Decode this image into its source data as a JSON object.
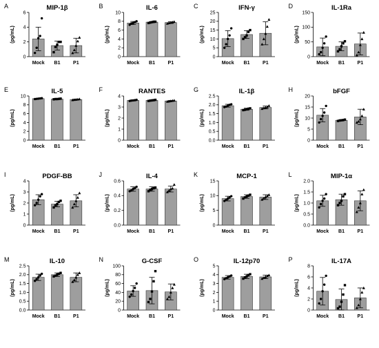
{
  "chart_data": [
    {
      "letter": "A",
      "title": "MIP-1β",
      "type": "bar",
      "ylabel": "(pg/mL)",
      "categories": [
        "Mock",
        "B1",
        "P1"
      ],
      "ylim": [
        0,
        6
      ],
      "yticks": [
        0,
        2,
        4,
        6
      ],
      "values": [
        2.4,
        1.5,
        1.5
      ],
      "errors": [
        1.6,
        0.6,
        1.0
      ],
      "points": [
        [
          0.5,
          1.2,
          2.5,
          2.8,
          5.2
        ],
        [
          0.6,
          1.3,
          1.6,
          2.0,
          2.0
        ],
        [
          0.5,
          0.9,
          1.5,
          2.1,
          2.6
        ]
      ],
      "markers": [
        "circle",
        "square",
        "triangle"
      ]
    },
    {
      "letter": "B",
      "title": "IL-6",
      "type": "bar",
      "ylabel": "(pg/mL)",
      "categories": [
        "Mock",
        "B1",
        "P1"
      ],
      "ylim": [
        0,
        10
      ],
      "yticks": [
        0,
        2,
        4,
        6,
        8,
        10
      ],
      "values": [
        7.6,
        7.8,
        7.7
      ],
      "errors": [
        0.35,
        0.15,
        0.2
      ],
      "points": [
        [
          7.2,
          7.5,
          7.6,
          7.8,
          8.0
        ],
        [
          7.6,
          7.7,
          7.8,
          7.9,
          7.9
        ],
        [
          7.5,
          7.6,
          7.7,
          7.8,
          7.9
        ]
      ],
      "markers": [
        "circle",
        "square",
        "triangle"
      ]
    },
    {
      "letter": "C",
      "title": "IFN-γ",
      "type": "bar",
      "ylabel": "(pg/mL)",
      "categories": [
        "Mock",
        "B1",
        "P1"
      ],
      "ylim": [
        0,
        25
      ],
      "yticks": [
        0,
        5,
        10,
        15,
        20,
        25
      ],
      "values": [
        10.2,
        12.5,
        13.2
      ],
      "errors": [
        4.5,
        2.2,
        6.5
      ],
      "points": [
        [
          5,
          7,
          10,
          12,
          16
        ],
        [
          10,
          11,
          12,
          14,
          15
        ],
        [
          7,
          10,
          13,
          17,
          21
        ]
      ],
      "markers": [
        "circle",
        "square",
        "triangle"
      ]
    },
    {
      "letter": "D",
      "title": "IL-1Ra",
      "type": "bar",
      "ylabel": "(pg/mL)",
      "categories": [
        "Mock",
        "B1",
        "P1"
      ],
      "ylim": [
        0,
        150
      ],
      "yticks": [
        0,
        50,
        100,
        150
      ],
      "values": [
        33,
        35,
        43
      ],
      "errors": [
        30,
        15,
        37
      ],
      "points": [
        [
          8,
          15,
          30,
          45,
          68
        ],
        [
          18,
          25,
          35,
          45,
          52
        ],
        [
          5,
          15,
          40,
          60,
          82
        ]
      ],
      "markers": [
        "circle",
        "square",
        "triangle"
      ]
    },
    {
      "letter": "E",
      "title": "IL-5",
      "type": "bar",
      "ylabel": "(pg/mL)",
      "categories": [
        "Mock",
        "B1",
        "P1"
      ],
      "ylim": [
        0,
        10
      ],
      "yticks": [
        0,
        2,
        4,
        6,
        8,
        10
      ],
      "values": [
        9.4,
        9.3,
        9.2
      ],
      "errors": [
        0.08,
        0.06,
        0.08
      ],
      "points": [
        [
          9.3,
          9.35,
          9.4,
          9.45,
          9.5
        ],
        [
          9.25,
          9.3,
          9.3,
          9.35,
          9.4
        ],
        [
          9.1,
          9.15,
          9.2,
          9.25,
          9.3
        ]
      ],
      "markers": [
        "circle",
        "square",
        "triangle"
      ]
    },
    {
      "letter": "F",
      "title": "RANTES",
      "type": "bar",
      "ylabel": "(pg/mL)",
      "categories": [
        "Mock",
        "B1",
        "P1"
      ],
      "ylim": [
        0,
        4
      ],
      "yticks": [
        0,
        1,
        2,
        3,
        4
      ],
      "values": [
        3.6,
        3.6,
        3.55
      ],
      "errors": [
        0.05,
        0.05,
        0.05
      ],
      "points": [
        [
          3.55,
          3.58,
          3.6,
          3.62,
          3.65
        ],
        [
          3.55,
          3.58,
          3.6,
          3.62,
          3.65
        ],
        [
          3.5,
          3.52,
          3.55,
          3.58,
          3.6
        ]
      ],
      "markers": [
        "circle",
        "square",
        "triangle"
      ]
    },
    {
      "letter": "G",
      "title": "IL-1β",
      "type": "bar",
      "ylabel": "(pg/mL)",
      "categories": [
        "Mock",
        "B1",
        "P1"
      ],
      "ylim": [
        0,
        2.5
      ],
      "yticks": [
        0,
        0.5,
        1.0,
        1.5,
        2.0,
        2.5
      ],
      "ytickLabels": [
        "0.0",
        "0.5",
        "1.0",
        "1.5",
        "2.0",
        "2.5"
      ],
      "values": [
        1.95,
        1.75,
        1.85
      ],
      "errors": [
        0.08,
        0.06,
        0.08
      ],
      "points": [
        [
          1.87,
          1.9,
          1.95,
          2.0,
          2.03
        ],
        [
          1.7,
          1.72,
          1.75,
          1.78,
          1.8
        ],
        [
          1.78,
          1.82,
          1.85,
          1.88,
          1.95
        ]
      ],
      "markers": [
        "circle",
        "square",
        "triangle"
      ]
    },
    {
      "letter": "H",
      "title": "bFGF",
      "type": "bar",
      "ylabel": "(pg/mL)",
      "categories": [
        "Mock",
        "B1",
        "P1"
      ],
      "ylim": [
        0,
        20
      ],
      "yticks": [
        0,
        5,
        10,
        15,
        20
      ],
      "values": [
        11.3,
        9.0,
        10.5
      ],
      "errors": [
        3.0,
        0.3,
        3.5
      ],
      "points": [
        [
          8,
          9.5,
          11,
          12.5,
          15.5
        ],
        [
          8.7,
          8.9,
          9.0,
          9.1,
          9.3
        ],
        [
          8,
          8.5,
          9.5,
          11,
          14
        ]
      ],
      "markers": [
        "circle",
        "square",
        "triangle"
      ]
    },
    {
      "letter": "I",
      "title": "PDGF-BB",
      "type": "bar",
      "ylabel": "(pg/mL)",
      "categories": [
        "Mock",
        "B1",
        "P1"
      ],
      "ylim": [
        0,
        4
      ],
      "yticks": [
        0,
        1,
        2,
        3,
        4
      ],
      "values": [
        2.3,
        1.9,
        2.2
      ],
      "errors": [
        0.45,
        0.25,
        0.55
      ],
      "points": [
        [
          1.8,
          2.0,
          2.3,
          2.6,
          2.8
        ],
        [
          1.6,
          1.8,
          1.9,
          2.1,
          2.2
        ],
        [
          1.6,
          1.9,
          2.2,
          2.5,
          2.9
        ]
      ],
      "markers": [
        "circle",
        "square",
        "triangle"
      ]
    },
    {
      "letter": "J",
      "title": "IL-4",
      "type": "bar",
      "ylabel": "(pg/mL)",
      "categories": [
        "Mock",
        "B1",
        "P1"
      ],
      "ylim": [
        0,
        0.6
      ],
      "yticks": [
        0,
        0.2,
        0.4,
        0.6
      ],
      "ytickLabels": [
        "0.0",
        "0.2",
        "0.4",
        "0.6"
      ],
      "values": [
        0.49,
        0.49,
        0.49
      ],
      "errors": [
        0.03,
        0.03,
        0.04
      ],
      "points": [
        [
          0.46,
          0.47,
          0.49,
          0.5,
          0.52
        ],
        [
          0.46,
          0.48,
          0.49,
          0.5,
          0.51
        ],
        [
          0.45,
          0.47,
          0.49,
          0.5,
          0.55
        ]
      ],
      "markers": [
        "circle",
        "square",
        "triangle"
      ]
    },
    {
      "letter": "K",
      "title": "MCP-1",
      "type": "bar",
      "ylabel": "(pg/mL)",
      "categories": [
        "Mock",
        "B1",
        "P1"
      ],
      "ylim": [
        0,
        15
      ],
      "yticks": [
        0,
        5,
        10,
        15
      ],
      "values": [
        9.0,
        9.7,
        9.5
      ],
      "errors": [
        0.8,
        0.6,
        0.8
      ],
      "points": [
        [
          8.2,
          8.6,
          9.0,
          9.4,
          9.8
        ],
        [
          9.0,
          9.4,
          9.7,
          10.0,
          10.3
        ],
        [
          8.7,
          9.1,
          9.5,
          9.9,
          10.3
        ]
      ],
      "markers": [
        "circle",
        "square",
        "triangle"
      ]
    },
    {
      "letter": "L",
      "title": "MIP-1α",
      "type": "bar",
      "ylabel": "(pg/mL)",
      "categories": [
        "Mock",
        "B1",
        "P1"
      ],
      "ylim": [
        0,
        2.0
      ],
      "yticks": [
        0,
        0.5,
        1.0,
        1.5,
        2.0
      ],
      "ytickLabels": [
        "0.0",
        "0.5",
        "1.0",
        "1.5",
        "2.0"
      ],
      "values": [
        1.1,
        1.15,
        1.1
      ],
      "errors": [
        0.25,
        0.25,
        0.45
      ],
      "points": [
        [
          0.8,
          0.95,
          1.1,
          1.2,
          1.4
        ],
        [
          0.9,
          1.0,
          1.1,
          1.3,
          1.4
        ],
        [
          0.6,
          0.8,
          1.0,
          1.4,
          1.6
        ]
      ],
      "markers": [
        "circle",
        "square",
        "triangle"
      ]
    },
    {
      "letter": "M",
      "title": "IL-10",
      "type": "bar",
      "ylabel": "(pg/mL)",
      "categories": [
        "Mock",
        "B1",
        "P1"
      ],
      "ylim": [
        0,
        2.5
      ],
      "yticks": [
        0,
        0.5,
        1.0,
        1.5,
        2.0,
        2.5
      ],
      "ytickLabels": [
        "0.0",
        "0.5",
        "1.0",
        "1.5",
        "2.0",
        "2.5"
      ],
      "values": [
        1.85,
        2.0,
        1.85
      ],
      "errors": [
        0.18,
        0.1,
        0.25
      ],
      "points": [
        [
          1.65,
          1.75,
          1.85,
          1.95,
          2.05
        ],
        [
          1.9,
          1.95,
          2.0,
          2.05,
          2.1
        ],
        [
          1.6,
          1.7,
          1.85,
          2.0,
          2.1
        ]
      ],
      "markers": [
        "circle",
        "square",
        "triangle"
      ]
    },
    {
      "letter": "N",
      "title": "G-CSF",
      "type": "bar",
      "ylabel": "(pg/mL)",
      "categories": [
        "Mock",
        "B1",
        "P1"
      ],
      "ylim": [
        0,
        100
      ],
      "yticks": [
        0,
        20,
        40,
        60,
        80,
        100
      ],
      "values": [
        43,
        44,
        41
      ],
      "errors": [
        12,
        30,
        18
      ],
      "points": [
        [
          30,
          35,
          43,
          50,
          60
        ],
        [
          18,
          25,
          42,
          65,
          88
        ],
        [
          25,
          30,
          40,
          50,
          58
        ]
      ],
      "markers": [
        "circle",
        "square",
        "triangle"
      ]
    },
    {
      "letter": "O",
      "title": "IL-12p70",
      "type": "bar",
      "ylabel": "(pg/mL)",
      "categories": [
        "Mock",
        "B1",
        "P1"
      ],
      "ylim": [
        0,
        5
      ],
      "yticks": [
        0,
        1,
        2,
        3,
        4,
        5
      ],
      "values": [
        3.7,
        3.8,
        3.75
      ],
      "errors": [
        0.2,
        0.25,
        0.2
      ],
      "points": [
        [
          3.5,
          3.6,
          3.7,
          3.8,
          3.9
        ],
        [
          3.55,
          3.7,
          3.8,
          3.95,
          4.05
        ],
        [
          3.55,
          3.65,
          3.75,
          3.85,
          3.95
        ]
      ],
      "markers": [
        "circle",
        "square",
        "triangle"
      ]
    },
    {
      "letter": "P",
      "title": "IL-17A",
      "type": "bar",
      "ylabel": "(pg/mL)",
      "categories": [
        "Mock",
        "B1",
        "P1"
      ],
      "ylim": [
        0,
        8
      ],
      "yticks": [
        0,
        2,
        4,
        6,
        8
      ],
      "values": [
        3.4,
        1.9,
        2.2
      ],
      "errors": [
        2.5,
        1.9,
        1.8
      ],
      "points": [
        [
          1.2,
          2.0,
          3.4,
          4.6,
          6.2
        ],
        [
          0.3,
          0.6,
          1.5,
          2.8,
          4.5
        ],
        [
          0.4,
          0.9,
          2.0,
          3.2,
          4.0
        ]
      ],
      "markers": [
        "circle",
        "square",
        "triangle"
      ]
    }
  ]
}
